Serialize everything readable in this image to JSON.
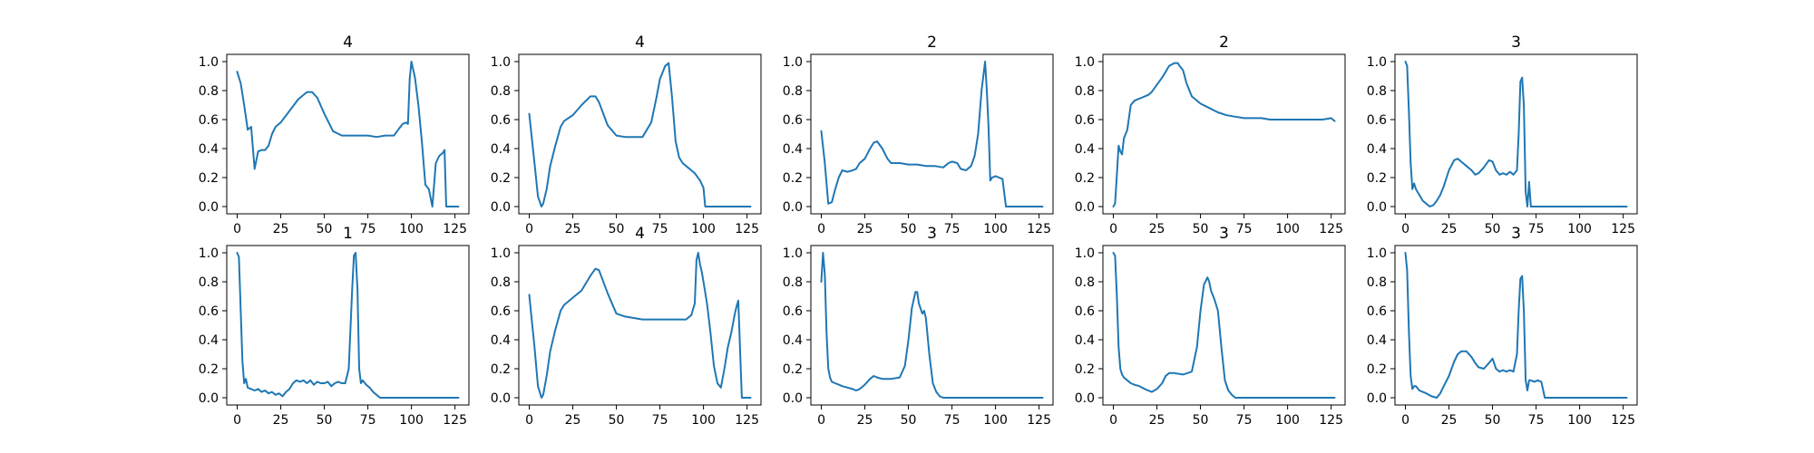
{
  "chart_data": [
    {
      "type": "line",
      "title": "4",
      "xlim": [
        -6,
        133
      ],
      "ylim": [
        -0.05,
        1.05
      ],
      "xticks": [
        0,
        25,
        50,
        75,
        100,
        125
      ],
      "yticks": [
        0.0,
        0.2,
        0.4,
        0.6,
        0.8,
        1.0
      ],
      "line_color": "#1f77b4",
      "x": [
        0,
        2,
        4,
        6,
        8,
        10,
        12,
        14,
        16,
        18,
        20,
        22,
        25,
        30,
        35,
        40,
        43,
        46,
        50,
        55,
        60,
        65,
        70,
        75,
        80,
        85,
        90,
        93,
        95,
        97,
        98,
        99,
        100,
        102,
        104,
        106,
        108,
        110,
        112,
        114,
        116,
        118,
        119,
        120,
        122,
        125,
        127
      ],
      "y": [
        0.93,
        0.85,
        0.7,
        0.53,
        0.55,
        0.26,
        0.38,
        0.39,
        0.39,
        0.42,
        0.5,
        0.55,
        0.58,
        0.66,
        0.74,
        0.79,
        0.79,
        0.75,
        0.64,
        0.52,
        0.49,
        0.49,
        0.49,
        0.49,
        0.48,
        0.49,
        0.49,
        0.54,
        0.57,
        0.58,
        0.57,
        0.88,
        1.0,
        0.89,
        0.7,
        0.45,
        0.15,
        0.12,
        0.0,
        0.3,
        0.35,
        0.37,
        0.39,
        0.0,
        0.0,
        0.0,
        0.0
      ]
    },
    {
      "type": "line",
      "title": "4",
      "xlim": [
        -6,
        133
      ],
      "ylim": [
        -0.05,
        1.05
      ],
      "xticks": [
        0,
        25,
        50,
        75,
        100,
        125
      ],
      "yticks": [
        0.0,
        0.2,
        0.4,
        0.6,
        0.8,
        1.0
      ],
      "line_color": "#1f77b4",
      "x": [
        0,
        3,
        5,
        7,
        8,
        10,
        12,
        15,
        18,
        20,
        25,
        30,
        35,
        38,
        40,
        45,
        50,
        55,
        60,
        65,
        70,
        73,
        75,
        78,
        80,
        82,
        84,
        86,
        88,
        90,
        95,
        98,
        100,
        101,
        102,
        105,
        110,
        115,
        120,
        125,
        127
      ],
      "y": [
        0.64,
        0.3,
        0.07,
        0.0,
        0.02,
        0.12,
        0.28,
        0.42,
        0.55,
        0.59,
        0.63,
        0.7,
        0.76,
        0.76,
        0.72,
        0.56,
        0.49,
        0.48,
        0.48,
        0.48,
        0.58,
        0.75,
        0.88,
        0.97,
        0.99,
        0.75,
        0.45,
        0.34,
        0.3,
        0.28,
        0.23,
        0.18,
        0.13,
        0.0,
        0.0,
        0.0,
        0.0,
        0.0,
        0.0,
        0.0,
        0.0
      ]
    },
    {
      "type": "line",
      "title": "2",
      "xlim": [
        -6,
        133
      ],
      "ylim": [
        -0.05,
        1.05
      ],
      "xticks": [
        0,
        25,
        50,
        75,
        100,
        125
      ],
      "yticks": [
        0.0,
        0.2,
        0.4,
        0.6,
        0.8,
        1.0
      ],
      "line_color": "#1f77b4",
      "x": [
        0,
        2,
        4,
        6,
        8,
        10,
        12,
        15,
        18,
        20,
        22,
        25,
        28,
        30,
        32,
        35,
        38,
        40,
        45,
        50,
        55,
        60,
        65,
        70,
        73,
        75,
        78,
        80,
        83,
        86,
        88,
        90,
        92,
        94,
        95,
        96,
        97,
        98,
        100,
        102,
        104,
        106,
        110,
        115,
        120,
        125,
        127
      ],
      "y": [
        0.52,
        0.3,
        0.02,
        0.03,
        0.12,
        0.2,
        0.25,
        0.24,
        0.25,
        0.26,
        0.3,
        0.33,
        0.4,
        0.44,
        0.45,
        0.4,
        0.33,
        0.3,
        0.3,
        0.29,
        0.29,
        0.28,
        0.28,
        0.27,
        0.3,
        0.31,
        0.3,
        0.26,
        0.25,
        0.28,
        0.35,
        0.5,
        0.8,
        1.0,
        0.8,
        0.55,
        0.18,
        0.2,
        0.21,
        0.2,
        0.19,
        0.0,
        0.0,
        0.0,
        0.0,
        0.0,
        0.0
      ]
    },
    {
      "type": "line",
      "title": "2",
      "xlim": [
        -6,
        133
      ],
      "ylim": [
        -0.05,
        1.05
      ],
      "xticks": [
        0,
        25,
        50,
        75,
        100,
        125
      ],
      "yticks": [
        0.0,
        0.2,
        0.4,
        0.6,
        0.8,
        1.0
      ],
      "line_color": "#1f77b4",
      "x": [
        0,
        1,
        2,
        3,
        4,
        5,
        6,
        8,
        10,
        12,
        14,
        16,
        18,
        20,
        22,
        25,
        28,
        30,
        32,
        35,
        37,
        38,
        40,
        42,
        45,
        50,
        55,
        60,
        65,
        70,
        75,
        80,
        85,
        90,
        95,
        100,
        105,
        110,
        115,
        120,
        125,
        127
      ],
      "y": [
        0.0,
        0.02,
        0.22,
        0.42,
        0.38,
        0.36,
        0.47,
        0.53,
        0.7,
        0.73,
        0.74,
        0.75,
        0.76,
        0.77,
        0.79,
        0.84,
        0.89,
        0.93,
        0.97,
        0.99,
        0.99,
        0.97,
        0.94,
        0.85,
        0.76,
        0.71,
        0.68,
        0.65,
        0.63,
        0.62,
        0.61,
        0.61,
        0.61,
        0.6,
        0.6,
        0.6,
        0.6,
        0.6,
        0.6,
        0.6,
        0.61,
        0.59
      ]
    },
    {
      "type": "line",
      "title": "3",
      "xlim": [
        -6,
        133
      ],
      "ylim": [
        -0.05,
        1.05
      ],
      "xticks": [
        0,
        25,
        50,
        75,
        100,
        125
      ],
      "yticks": [
        0.0,
        0.2,
        0.4,
        0.6,
        0.8,
        1.0
      ],
      "line_color": "#1f77b4",
      "x": [
        0,
        1,
        2,
        3,
        4,
        5,
        6,
        8,
        10,
        12,
        14,
        16,
        18,
        20,
        22,
        25,
        28,
        30,
        32,
        35,
        38,
        40,
        42,
        45,
        48,
        50,
        52,
        54,
        56,
        58,
        60,
        62,
        64,
        65,
        66,
        67,
        68,
        69,
        70,
        71,
        72,
        73,
        75,
        80,
        90,
        100,
        110,
        120,
        127
      ],
      "y": [
        1.0,
        0.97,
        0.65,
        0.3,
        0.12,
        0.16,
        0.12,
        0.08,
        0.04,
        0.02,
        0.0,
        0.01,
        0.04,
        0.08,
        0.14,
        0.25,
        0.32,
        0.33,
        0.31,
        0.28,
        0.25,
        0.22,
        0.23,
        0.27,
        0.32,
        0.31,
        0.25,
        0.22,
        0.23,
        0.22,
        0.24,
        0.22,
        0.25,
        0.5,
        0.86,
        0.89,
        0.7,
        0.1,
        0.0,
        0.17,
        0.0,
        0.0,
        0.0,
        0.0,
        0.0,
        0.0,
        0.0,
        0.0,
        0.0
      ]
    },
    {
      "type": "line",
      "title": "1",
      "xlim": [
        -6,
        133
      ],
      "ylim": [
        -0.05,
        1.05
      ],
      "xticks": [
        0,
        25,
        50,
        75,
        100,
        125
      ],
      "yticks": [
        0.0,
        0.2,
        0.4,
        0.6,
        0.8,
        1.0
      ],
      "line_color": "#1f77b4",
      "x": [
        0,
        1,
        2,
        3,
        4,
        5,
        6,
        8,
        10,
        12,
        14,
        16,
        18,
        20,
        22,
        24,
        26,
        28,
        30,
        32,
        34,
        36,
        38,
        40,
        42,
        44,
        46,
        48,
        50,
        52,
        54,
        56,
        58,
        60,
        62,
        64,
        66,
        67,
        68,
        69,
        70,
        71,
        72,
        74,
        76,
        78,
        80,
        82,
        85,
        90,
        100,
        110,
        120,
        127
      ],
      "y": [
        1.0,
        0.97,
        0.6,
        0.25,
        0.1,
        0.13,
        0.07,
        0.06,
        0.05,
        0.06,
        0.04,
        0.05,
        0.03,
        0.04,
        0.02,
        0.03,
        0.01,
        0.04,
        0.06,
        0.1,
        0.12,
        0.11,
        0.12,
        0.1,
        0.12,
        0.09,
        0.11,
        0.1,
        0.1,
        0.11,
        0.08,
        0.1,
        0.11,
        0.1,
        0.1,
        0.2,
        0.75,
        0.98,
        1.0,
        0.75,
        0.2,
        0.1,
        0.12,
        0.09,
        0.07,
        0.04,
        0.02,
        0.0,
        0.0,
        0.0,
        0.0,
        0.0,
        0.0,
        0.0
      ]
    },
    {
      "type": "line",
      "title": "4",
      "xlim": [
        -6,
        133
      ],
      "ylim": [
        -0.05,
        1.05
      ],
      "xticks": [
        0,
        25,
        50,
        75,
        100,
        125
      ],
      "yticks": [
        0.0,
        0.2,
        0.4,
        0.6,
        0.8,
        1.0
      ],
      "line_color": "#1f77b4",
      "x": [
        0,
        3,
        5,
        7,
        8,
        10,
        12,
        15,
        18,
        20,
        25,
        30,
        35,
        38,
        40,
        45,
        50,
        55,
        60,
        65,
        70,
        75,
        80,
        85,
        90,
        93,
        95,
        96,
        97,
        98,
        99,
        100,
        102,
        104,
        106,
        108,
        110,
        112,
        114,
        116,
        118,
        119,
        120,
        122,
        125,
        127
      ],
      "y": [
        0.71,
        0.35,
        0.08,
        0.0,
        0.02,
        0.15,
        0.32,
        0.47,
        0.6,
        0.64,
        0.69,
        0.74,
        0.84,
        0.89,
        0.88,
        0.72,
        0.58,
        0.56,
        0.55,
        0.54,
        0.54,
        0.54,
        0.54,
        0.54,
        0.54,
        0.57,
        0.65,
        0.95,
        1.0,
        0.92,
        0.87,
        0.8,
        0.65,
        0.45,
        0.22,
        0.1,
        0.07,
        0.2,
        0.35,
        0.45,
        0.58,
        0.63,
        0.67,
        0.0,
        0.0,
        0.0
      ]
    },
    {
      "type": "line",
      "title": "3",
      "xlim": [
        -6,
        133
      ],
      "ylim": [
        -0.05,
        1.05
      ],
      "xticks": [
        0,
        25,
        50,
        75,
        100,
        125
      ],
      "yticks": [
        0.0,
        0.2,
        0.4,
        0.6,
        0.8,
        1.0
      ],
      "line_color": "#1f77b4",
      "x": [
        0,
        1,
        2,
        3,
        4,
        5,
        6,
        8,
        10,
        12,
        15,
        18,
        20,
        22,
        25,
        28,
        30,
        32,
        35,
        40,
        45,
        48,
        50,
        52,
        54,
        55,
        56,
        58,
        59,
        60,
        62,
        64,
        66,
        68,
        70,
        75,
        80,
        90,
        100,
        110,
        120,
        127
      ],
      "y": [
        0.8,
        1.0,
        0.85,
        0.45,
        0.2,
        0.14,
        0.11,
        0.1,
        0.09,
        0.08,
        0.07,
        0.06,
        0.05,
        0.06,
        0.09,
        0.13,
        0.15,
        0.14,
        0.13,
        0.13,
        0.14,
        0.22,
        0.4,
        0.62,
        0.73,
        0.73,
        0.65,
        0.58,
        0.6,
        0.55,
        0.3,
        0.1,
        0.04,
        0.01,
        0.0,
        0.0,
        0.0,
        0.0,
        0.0,
        0.0,
        0.0,
        0.0
      ]
    },
    {
      "type": "line",
      "title": "3",
      "xlim": [
        -6,
        133
      ],
      "ylim": [
        -0.05,
        1.05
      ],
      "xticks": [
        0,
        25,
        50,
        75,
        100,
        125
      ],
      "yticks": [
        0.0,
        0.2,
        0.4,
        0.6,
        0.8,
        1.0
      ],
      "line_color": "#1f77b4",
      "x": [
        0,
        1,
        2,
        3,
        4,
        5,
        6,
        8,
        10,
        12,
        15,
        18,
        20,
        22,
        25,
        28,
        30,
        32,
        35,
        40,
        45,
        48,
        50,
        52,
        54,
        55,
        56,
        58,
        60,
        62,
        64,
        66,
        68,
        70,
        75,
        80,
        90,
        100,
        110,
        120,
        127
      ],
      "y": [
        1.0,
        0.98,
        0.7,
        0.35,
        0.2,
        0.16,
        0.14,
        0.12,
        0.1,
        0.09,
        0.08,
        0.06,
        0.05,
        0.04,
        0.06,
        0.1,
        0.15,
        0.17,
        0.17,
        0.16,
        0.18,
        0.35,
        0.6,
        0.78,
        0.83,
        0.8,
        0.74,
        0.68,
        0.6,
        0.35,
        0.12,
        0.05,
        0.02,
        0.0,
        0.0,
        0.0,
        0.0,
        0.0,
        0.0,
        0.0,
        0.0
      ]
    },
    {
      "type": "line",
      "title": "3",
      "xlim": [
        -6,
        133
      ],
      "ylim": [
        -0.05,
        1.05
      ],
      "xticks": [
        0,
        25,
        50,
        75,
        100,
        125
      ],
      "yticks": [
        0.0,
        0.2,
        0.4,
        0.6,
        0.8,
        1.0
      ],
      "line_color": "#1f77b4",
      "x": [
        0,
        1,
        2,
        3,
        4,
        5,
        6,
        8,
        10,
        12,
        15,
        18,
        20,
        22,
        25,
        28,
        30,
        32,
        35,
        38,
        40,
        42,
        45,
        48,
        50,
        52,
        54,
        56,
        58,
        60,
        62,
        64,
        65,
        66,
        67,
        68,
        69,
        70,
        71,
        72,
        74,
        76,
        78,
        80,
        85,
        90,
        100,
        110,
        120,
        127
      ],
      "y": [
        1.0,
        0.88,
        0.45,
        0.15,
        0.06,
        0.08,
        0.08,
        0.05,
        0.04,
        0.03,
        0.01,
        0.0,
        0.03,
        0.08,
        0.15,
        0.25,
        0.3,
        0.32,
        0.32,
        0.28,
        0.24,
        0.21,
        0.2,
        0.24,
        0.27,
        0.2,
        0.18,
        0.19,
        0.18,
        0.19,
        0.18,
        0.3,
        0.6,
        0.82,
        0.84,
        0.6,
        0.12,
        0.05,
        0.12,
        0.12,
        0.11,
        0.12,
        0.11,
        0.0,
        0.0,
        0.0,
        0.0,
        0.0,
        0.0,
        0.0
      ]
    }
  ]
}
